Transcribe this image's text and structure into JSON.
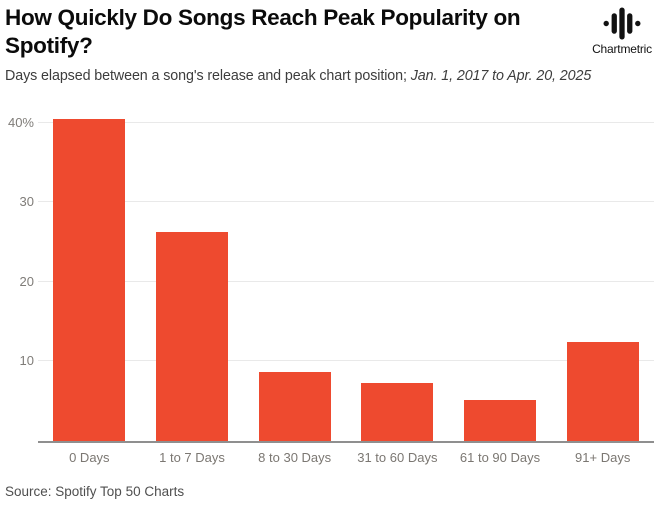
{
  "header": {
    "title": "How Quickly Do Songs Reach Peak Popularity on Spotify?",
    "subtitle_plain": "Days elapsed between a song's release and peak chart position; ",
    "subtitle_italic": "Jan. 1, 2017 to Apr. 20, 2025",
    "logo_text": "Chartmetric"
  },
  "chart_data": {
    "type": "bar",
    "title": "How Quickly Do Songs Reach Peak Popularity on Spotify?",
    "subtitle": "Days elapsed between a song's release and peak chart position; Jan. 1, 2017 to Apr. 20, 2025",
    "categories": [
      "0 Days",
      "1 to 7 Days",
      "8 to 30 Days",
      "31 to 60 Days",
      "61 to 90 Days",
      "91+ Days"
    ],
    "values": [
      40.5,
      26.2,
      8.6,
      7.3,
      5.1,
      12.4
    ],
    "unit": "%",
    "xlabel": "",
    "ylabel": "",
    "ylim": [
      0,
      42.5
    ],
    "yticks": [
      {
        "value": 10,
        "label": "10"
      },
      {
        "value": 20,
        "label": "20"
      },
      {
        "value": 30,
        "label": "30"
      },
      {
        "value": 40,
        "label": "40%"
      }
    ],
    "grid": true,
    "legend": false,
    "bar_color": "#EE4A2F",
    "gridline_color": "#e9e9e9",
    "axis_label_color": "#7b7772"
  },
  "footer": {
    "source": "Source: Spotify Top 50 Charts"
  }
}
